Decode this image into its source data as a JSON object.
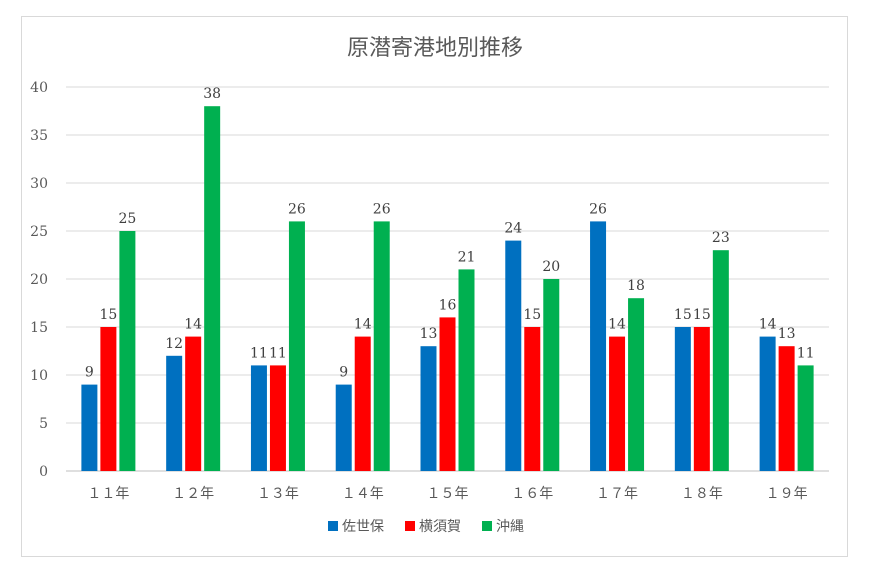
{
  "chart_data": {
    "type": "bar",
    "title": "原潜寄港地別推移",
    "categories": [
      "１１年",
      "１２年",
      "１３年",
      "１４年",
      "１５年",
      "１６年",
      "１７年",
      "１８年",
      "１９年"
    ],
    "series": [
      {
        "name": "佐世保",
        "color": "#0070c0",
        "values": [
          9,
          12,
          11,
          9,
          13,
          24,
          26,
          15,
          14
        ]
      },
      {
        "name": "横須賀",
        "color": "#ff0000",
        "values": [
          15,
          14,
          11,
          14,
          16,
          15,
          14,
          15,
          13
        ]
      },
      {
        "name": "沖縄",
        "color": "#00b050",
        "values": [
          25,
          38,
          26,
          26,
          21,
          20,
          18,
          23,
          11
        ]
      }
    ],
    "ylim": [
      0,
      40
    ],
    "yticks": [
      0,
      5,
      10,
      15,
      20,
      25,
      30,
      35,
      40
    ],
    "grid": true,
    "legend": "bottom",
    "xlabel": "",
    "ylabel": ""
  }
}
